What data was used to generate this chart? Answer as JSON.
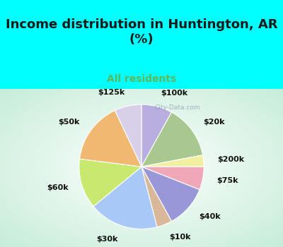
{
  "title": "Income distribution in Huntington, AR\n(%)",
  "subtitle": "All residents",
  "title_color": "#1a1a1a",
  "subtitle_color": "#5cb85c",
  "background_top": "#00ffff",
  "labels": [
    "$100k",
    "$20k",
    "$200k",
    "$75k",
    "$40k",
    "$10k",
    "$30k",
    "$60k",
    "$50k",
    "$125k"
  ],
  "values": [
    8,
    14,
    3,
    6,
    11,
    4,
    18,
    13,
    16,
    7
  ],
  "colors": [
    "#b8aee0",
    "#a8c890",
    "#f0f0a0",
    "#f0a8b8",
    "#9898d8",
    "#d8b898",
    "#a8c8f8",
    "#c8e870",
    "#f0b870",
    "#d8d0e8"
  ],
  "startangle": 90,
  "wedge_edge_color": "white",
  "label_fontsize": 8,
  "label_color": "#111111",
  "label_fontweight": "bold",
  "labeldistance": 1.22,
  "watermark": "City-Data.com",
  "title_fontsize": 13
}
